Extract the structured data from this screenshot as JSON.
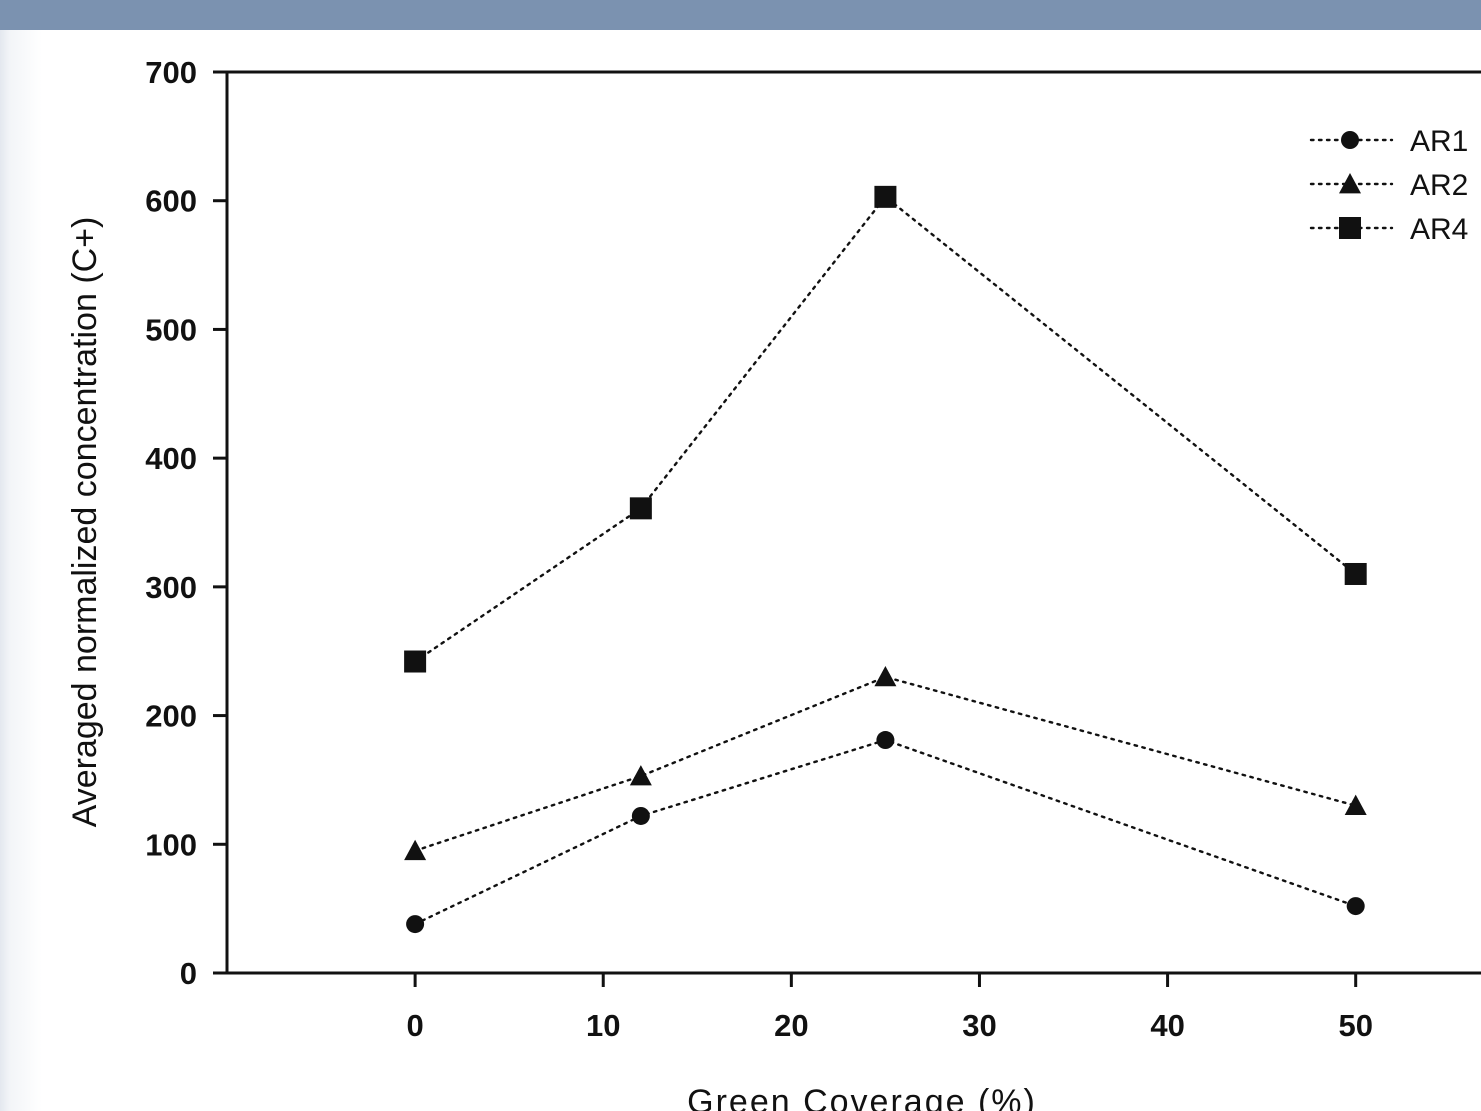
{
  "colors": {
    "header_band": "#7b92b0",
    "series": "#111111"
  },
  "chart_data": {
    "type": "line",
    "title": "",
    "xlabel": "Green Coverage (%)",
    "ylabel": "Averaged normalized concentration  (C+)",
    "xlim": [
      -10,
      59
    ],
    "ylim": [
      0,
      700
    ],
    "x_ticks": [
      0,
      10,
      20,
      30,
      40,
      50
    ],
    "y_ticks": [
      0,
      100,
      200,
      300,
      400,
      500,
      600,
      700
    ],
    "x_tick_labels": [
      "0",
      "10",
      "20",
      "30",
      "40",
      "50"
    ],
    "y_tick_labels": [
      "0",
      "100",
      "200",
      "300",
      "400",
      "500",
      "600",
      "700"
    ],
    "line_style": "dotted",
    "grid": false,
    "legend_position": "top-right",
    "x": [
      0,
      12,
      25,
      50
    ],
    "series": [
      {
        "name": "AR1",
        "marker": "circle",
        "values": [
          38,
          122,
          181,
          52
        ]
      },
      {
        "name": "AR2",
        "marker": "triangle",
        "values": [
          95,
          153,
          230,
          130
        ]
      },
      {
        "name": "AR4",
        "marker": "square",
        "values": [
          242,
          361,
          603,
          310
        ]
      }
    ]
  }
}
